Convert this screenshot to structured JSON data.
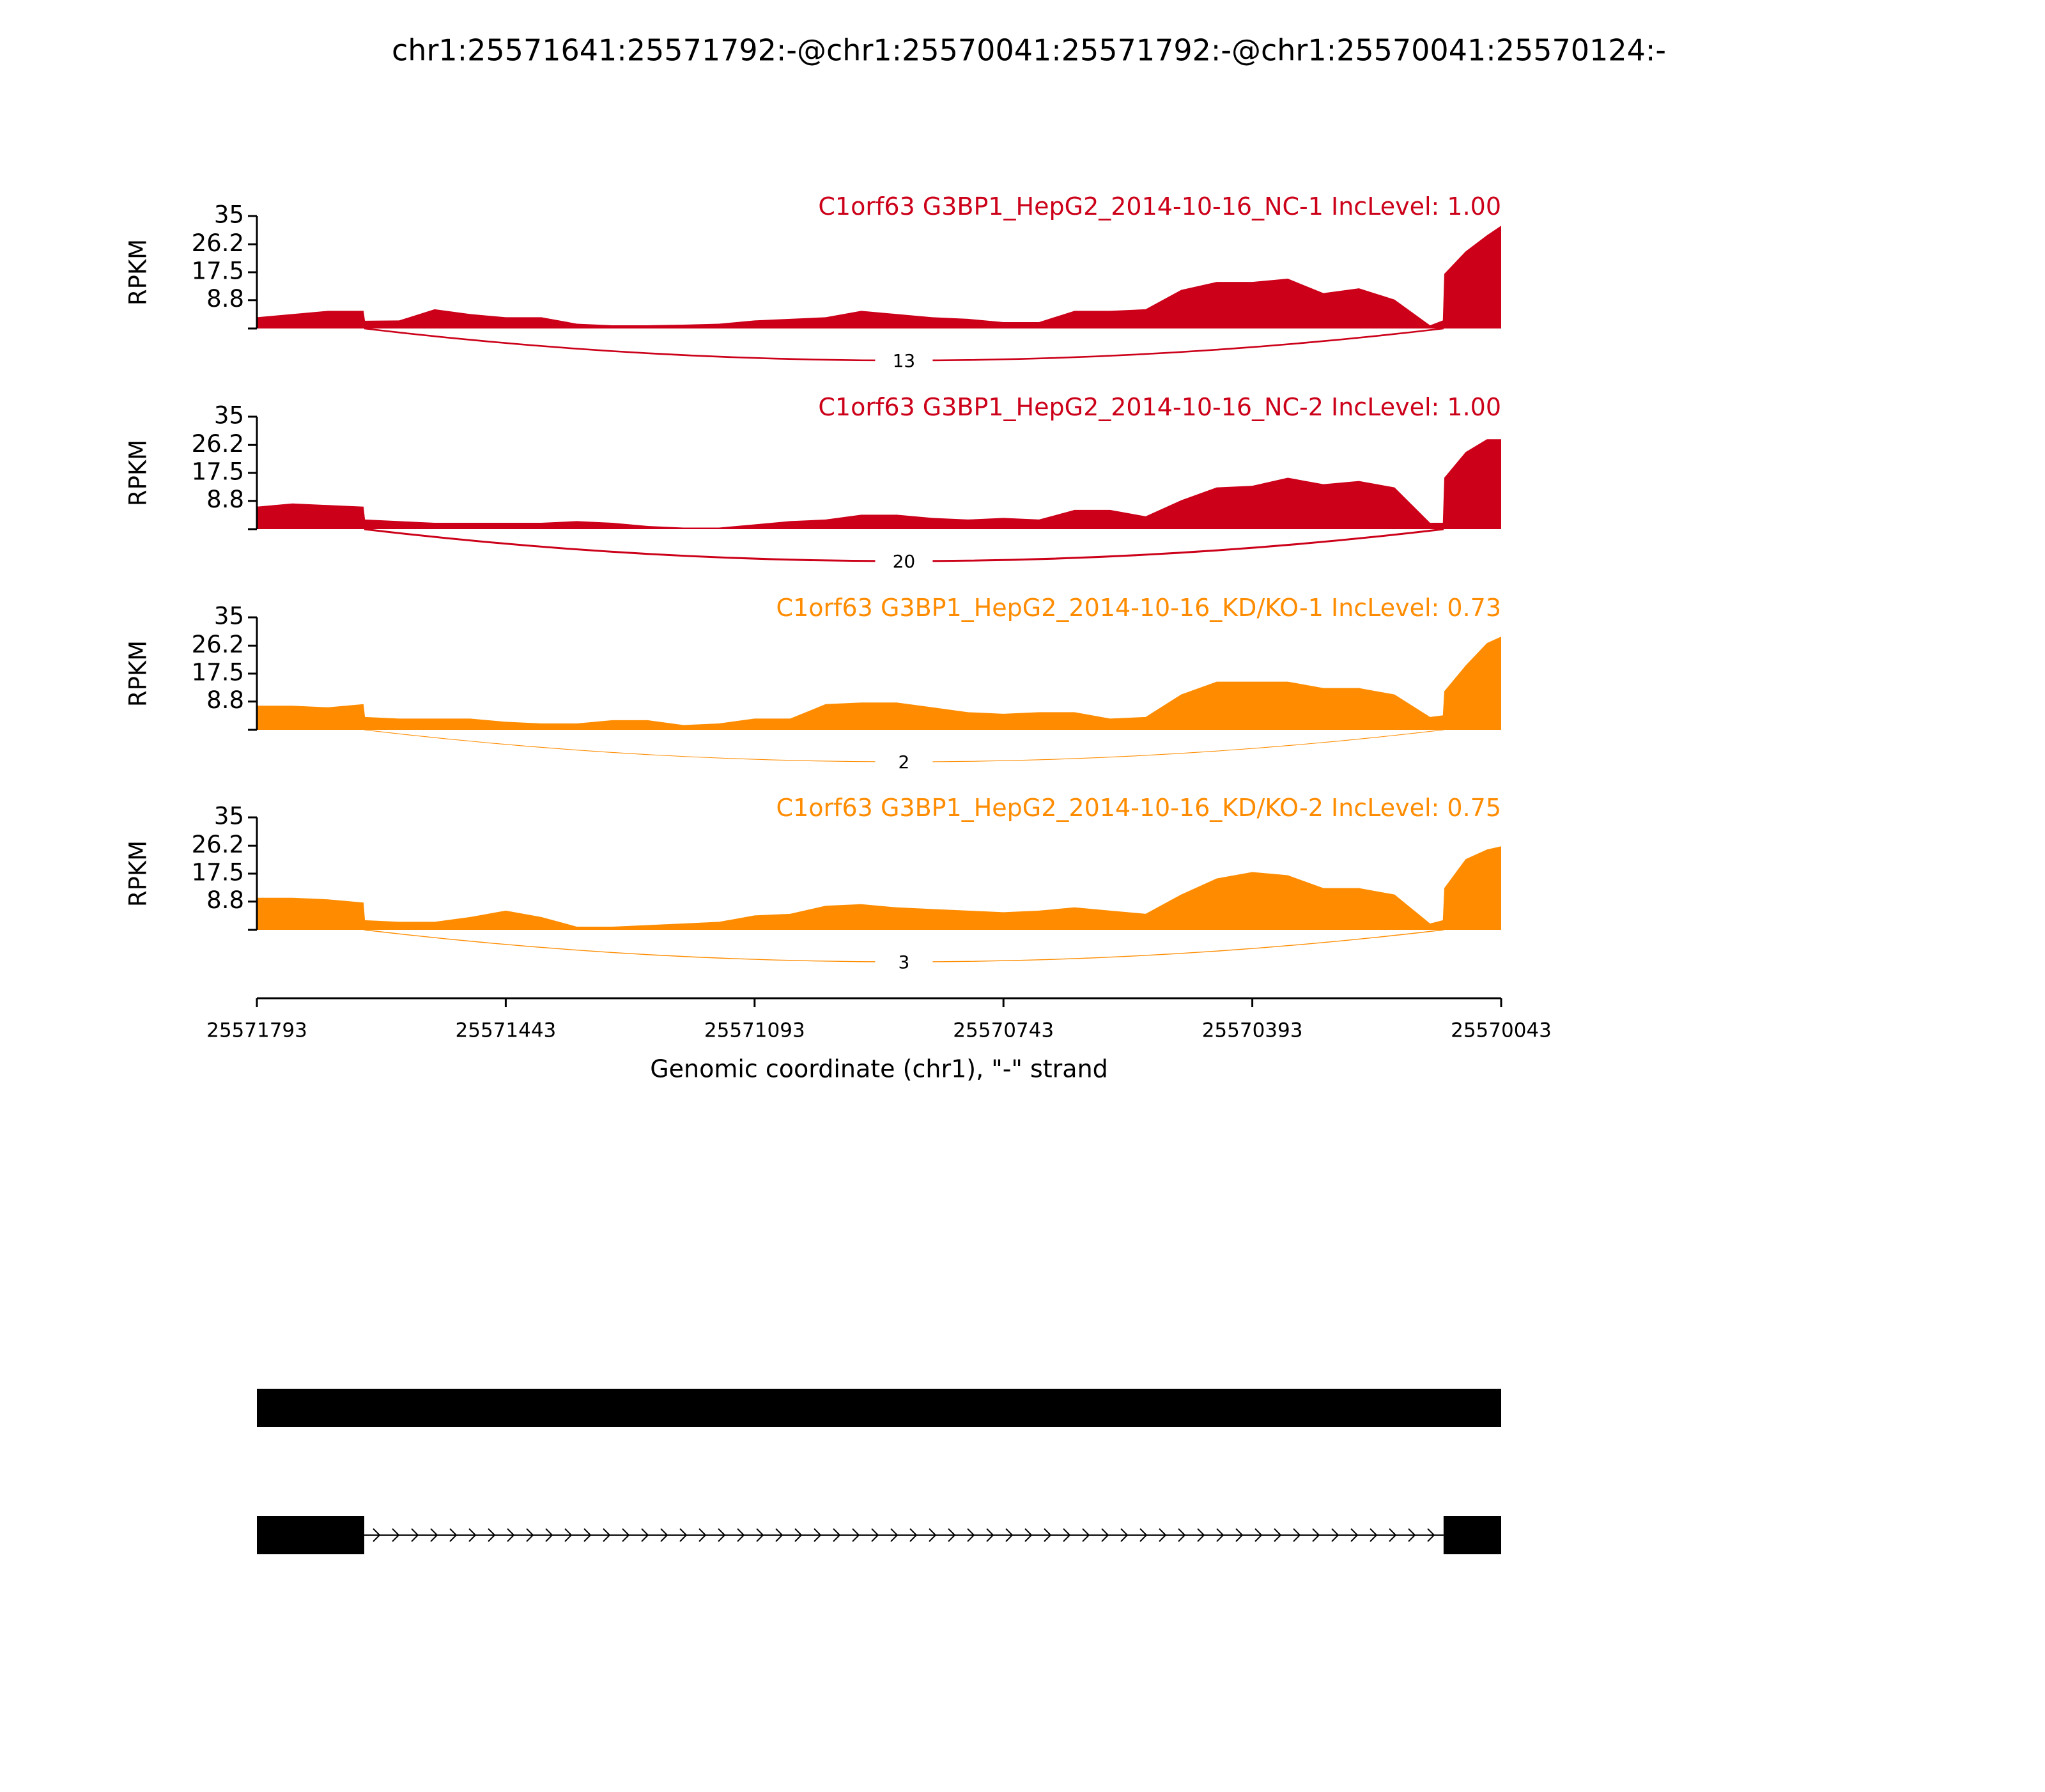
{
  "title": "chr1:25571641:25571792:-@chr1:25570041:25571792:-@chr1:25570041:25570124:-",
  "x_axis": {
    "xlim": [
      25571793,
      25570043
    ],
    "xticks": [
      25571793,
      25571443,
      25571093,
      25570743,
      25570393,
      25570043
    ],
    "xlabel": "Genomic coordinate (chr1), \"-\" strand"
  },
  "chart_data": [
    {
      "type": "area",
      "title": "C1orf63 G3BP1_HepG2_2014-10-16_NC-1 IncLevel: 1.00",
      "ylabel": "RPKM",
      "ylim": [
        0,
        35
      ],
      "yticks": [
        8.8,
        17.5,
        26.2,
        35
      ],
      "x": [
        25571793,
        25571743,
        25571693,
        25571643,
        25571641,
        25571593,
        25571543,
        25571493,
        25571443,
        25571393,
        25571343,
        25571293,
        25571243,
        25571193,
        25571143,
        25571093,
        25571043,
        25570993,
        25570943,
        25570893,
        25570843,
        25570793,
        25570743,
        25570693,
        25570643,
        25570593,
        25570543,
        25570493,
        25570443,
        25570393,
        25570343,
        25570293,
        25570243,
        25570193,
        25570143,
        25570125,
        25570123,
        25570093,
        25570063,
        25570043
      ],
      "series": [
        {
          "color": "#cc0019",
          "values": [
            3.5,
            4.5,
            5.5,
            5.5,
            2.4,
            2.5,
            6,
            4.5,
            3.5,
            3.5,
            1.5,
            1,
            1,
            1.2,
            1.5,
            2.5,
            3,
            3.5,
            5.5,
            4.5,
            3.5,
            3,
            2,
            2,
            5.5,
            5.5,
            6,
            12,
            14.5,
            14.5,
            15.5,
            11,
            12.5,
            9,
            1,
            2.5,
            17,
            24,
            29,
            32
          ]
        }
      ],
      "junction": {
        "start": 25571642,
        "end": 25570124,
        "count": 13
      }
    },
    {
      "type": "area",
      "title": "C1orf63 G3BP1_HepG2_2014-10-16_NC-2 IncLevel: 1.00",
      "ylabel": "RPKM",
      "ylim": [
        0,
        35
      ],
      "yticks": [
        8.8,
        17.5,
        26.2,
        35
      ],
      "x": [
        25571793,
        25571743,
        25571693,
        25571643,
        25571641,
        25571593,
        25571543,
        25571493,
        25571443,
        25571393,
        25571343,
        25571293,
        25571243,
        25571193,
        25571143,
        25571093,
        25571043,
        25570993,
        25570943,
        25570893,
        25570843,
        25570793,
        25570743,
        25570693,
        25570643,
        25570593,
        25570543,
        25570493,
        25570443,
        25570393,
        25570343,
        25570293,
        25570243,
        25570193,
        25570143,
        25570125,
        25570123,
        25570093,
        25570063,
        25570043
      ],
      "series": [
        {
          "color": "#cc0019",
          "values": [
            7,
            8,
            7.5,
            7,
            3,
            2.5,
            2,
            2,
            2,
            2,
            2.5,
            2,
            1,
            0.5,
            0.5,
            1.5,
            2.5,
            3,
            4.5,
            4.5,
            3.5,
            3,
            3.5,
            3,
            6,
            6,
            4,
            9,
            13,
            13.5,
            16,
            14,
            15,
            13,
            2,
            2,
            16,
            24,
            28,
            28
          ]
        }
      ],
      "junction": {
        "start": 25571642,
        "end": 25570124,
        "count": 20
      }
    },
    {
      "type": "area",
      "title": "C1orf63 G3BP1_HepG2_2014-10-16_KD/KO-1 IncLevel: 0.73",
      "ylabel": "RPKM",
      "ylim": [
        0,
        35
      ],
      "yticks": [
        8.8,
        17.5,
        26.2,
        35
      ],
      "x": [
        25571793,
        25571743,
        25571693,
        25571643,
        25571641,
        25571593,
        25571543,
        25571493,
        25571443,
        25571393,
        25571343,
        25571293,
        25571243,
        25571193,
        25571143,
        25571093,
        25571043,
        25570993,
        25570943,
        25570893,
        25570843,
        25570793,
        25570743,
        25570693,
        25570643,
        25570593,
        25570543,
        25570493,
        25570443,
        25570393,
        25570343,
        25570293,
        25570243,
        25570193,
        25570143,
        25570125,
        25570123,
        25570093,
        25570063,
        25570043
      ],
      "series": [
        {
          "color": "#ff8c00",
          "values": [
            7.5,
            7.5,
            7,
            8,
            4,
            3.5,
            3.5,
            3.5,
            2.5,
            2,
            2,
            3,
            3,
            1.5,
            2,
            3.5,
            3.5,
            8,
            8.5,
            8.5,
            7,
            5.5,
            5,
            5.5,
            5.5,
            3.5,
            4,
            11,
            15,
            15,
            15,
            13,
            13,
            11,
            4,
            4.5,
            12,
            20,
            27,
            29
          ]
        }
      ],
      "junction": {
        "start": 25571642,
        "end": 25570124,
        "count": 2
      }
    },
    {
      "type": "area",
      "title": "C1orf63 G3BP1_HepG2_2014-10-16_KD/KO-2 IncLevel: 0.75",
      "ylabel": "RPKM",
      "ylim": [
        0,
        35
      ],
      "yticks": [
        8.8,
        17.5,
        26.2,
        35
      ],
      "x": [
        25571793,
        25571743,
        25571693,
        25571643,
        25571641,
        25571593,
        25571543,
        25571493,
        25571443,
        25571393,
        25571343,
        25571293,
        25571243,
        25571193,
        25571143,
        25571093,
        25571043,
        25570993,
        25570943,
        25570893,
        25570843,
        25570793,
        25570743,
        25570693,
        25570643,
        25570593,
        25570543,
        25570493,
        25570443,
        25570393,
        25570343,
        25570293,
        25570243,
        25570193,
        25570143,
        25570125,
        25570123,
        25570093,
        25570063,
        25570043
      ],
      "series": [
        {
          "color": "#ff8c00",
          "values": [
            10,
            10,
            9.5,
            8.5,
            3,
            2.5,
            2.5,
            4,
            6,
            4,
            1,
            1,
            1.5,
            2,
            2.5,
            4.5,
            5,
            7.5,
            8,
            7,
            6.5,
            6,
            5.5,
            6,
            7,
            6,
            5,
            11,
            16,
            18,
            17,
            13,
            13,
            11,
            2,
            3,
            13,
            22,
            25,
            26
          ]
        }
      ],
      "junction": {
        "start": 25571642,
        "end": 25570124,
        "count": 3
      }
    }
  ],
  "transcripts": [
    {
      "exons": [
        [
          25571793,
          25570043
        ]
      ]
    },
    {
      "exons": [
        [
          25571793,
          25571642
        ],
        [
          25570124,
          25570043
        ]
      ]
    }
  ]
}
